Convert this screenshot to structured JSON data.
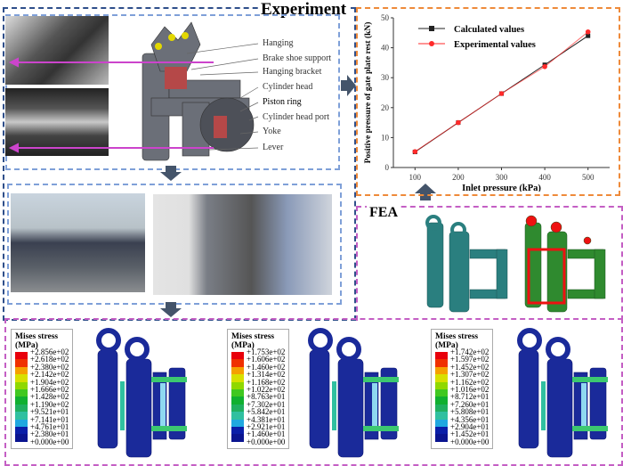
{
  "experiment": {
    "title": "Experiment",
    "part_labels": [
      "Hanging",
      "Brake shoe support",
      "Hanging bracket",
      "Cylinder head",
      "Piston ring",
      "Cylinder head port",
      "Yoke",
      "Lever"
    ]
  },
  "fea": {
    "title": "FEA"
  },
  "chart_data": {
    "type": "line",
    "xlabel": "Inlet pressure (kPa)",
    "ylabel": "Positive pressure of gate plate rest (kN)",
    "x": [
      100,
      200,
      300,
      400,
      500
    ],
    "xticks": [
      "100",
      "200",
      "300",
      "400",
      "500"
    ],
    "yticks": [
      "0",
      "10",
      "20",
      "30",
      "40",
      "50"
    ],
    "xlim": [
      50,
      550
    ],
    "ylim": [
      0,
      50
    ],
    "grid": false,
    "legend_position": "top-left",
    "series": [
      {
        "name": "Calculated values",
        "values": [
          5.2,
          15.0,
          24.7,
          34.3,
          44.0
        ],
        "color": "#222222",
        "marker": "square"
      },
      {
        "name": "Experimental values",
        "values": [
          5.3,
          15.0,
          24.7,
          33.7,
          45.3
        ],
        "color": "#ff2a2a",
        "marker": "circle"
      }
    ]
  },
  "stress_legends": [
    {
      "title": "Mises stress",
      "unit": "(MPa)",
      "values": [
        "+2.856e+02",
        "+2.618e+02",
        "+2.380e+02",
        "+2.142e+02",
        "+1.904e+02",
        "+1.666e+02",
        "+1.428e+02",
        "+1.190e+02",
        "+9.521e+01",
        "+7.141e+01",
        "+4.761e+01",
        "+2.380e+01",
        "+0.000e+00"
      ]
    },
    {
      "title": "Mises stress",
      "unit": "(MPa)",
      "values": [
        "+1.753e+02",
        "+1.606e+02",
        "+1.460e+02",
        "+1.314e+02",
        "+1.168e+02",
        "+1.022e+02",
        "+8.763e+01",
        "+7.302e+01",
        "+5.842e+01",
        "+4.381e+01",
        "+2.921e+01",
        "+1.460e+01",
        "+0.000e+00"
      ]
    },
    {
      "title": "Mises stress",
      "unit": "(MPa)",
      "values": [
        "+1.742e+02",
        "+1.597e+02",
        "+1.452e+02",
        "+1.307e+02",
        "+1.162e+02",
        "+1.016e+02",
        "+8.712e+01",
        "+7.260e+01",
        "+5.808e+01",
        "+4.356e+01",
        "+2.904e+01",
        "+1.452e+01",
        "+0.000e+00"
      ]
    }
  ],
  "colors": {
    "experiment_border": "#2f4f8a",
    "inner_border": "#7fa0d8",
    "chart_border": "#ee8a3a",
    "fea_border": "#c45fc4",
    "arrow": "#44546a",
    "stress_scale": [
      "#e8000b",
      "#f03000",
      "#f5a000",
      "#d8e000",
      "#90d800",
      "#40c820",
      "#10b030",
      "#20b060",
      "#30c0a0",
      "#20a8e0",
      "#0a1ea8",
      "#0a1490"
    ]
  }
}
